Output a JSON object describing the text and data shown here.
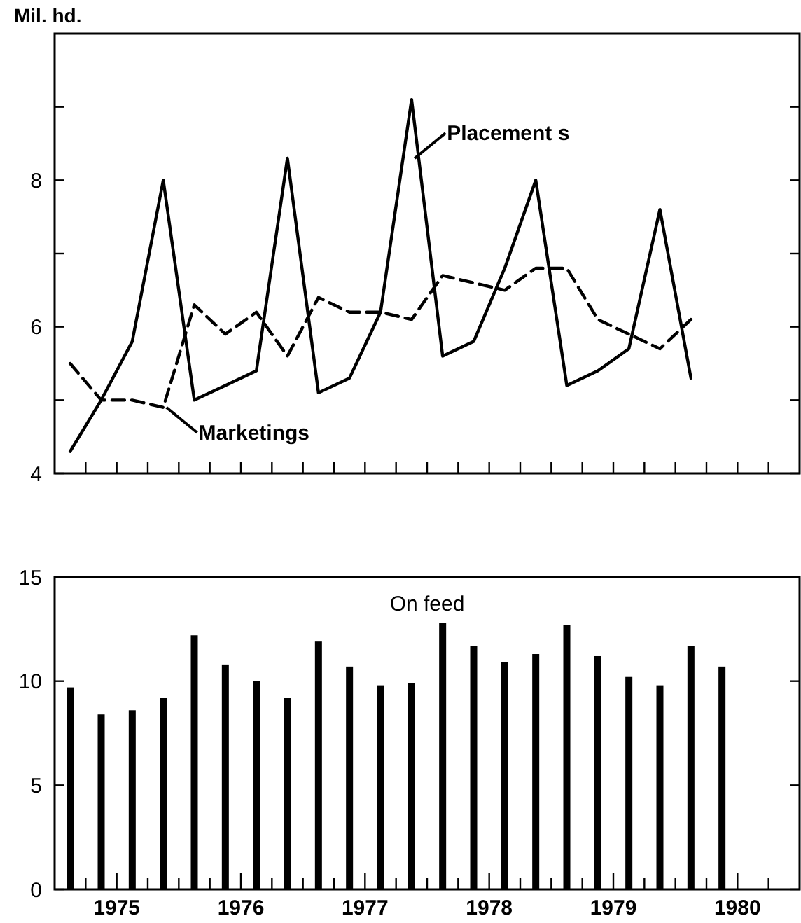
{
  "chart_data": [
    {
      "type": "line",
      "ylabel": "Mil. hd.",
      "xlim": [
        1975,
        1981
      ],
      "xticks": [
        {
          "value": 1975.25,
          "label": null
        },
        {
          "value": 1975.5,
          "label": null
        },
        {
          "value": 1975.75,
          "label": null
        },
        {
          "value": 1976,
          "label": null
        },
        {
          "value": 1976.25,
          "label": null
        },
        {
          "value": 1976.5,
          "label": null
        },
        {
          "value": 1976.75,
          "label": null
        },
        {
          "value": 1977,
          "label": null
        },
        {
          "value": 1977.25,
          "label": null
        },
        {
          "value": 1977.5,
          "label": null
        },
        {
          "value": 1977.75,
          "label": null
        },
        {
          "value": 1978,
          "label": null
        },
        {
          "value": 1978.25,
          "label": null
        },
        {
          "value": 1978.5,
          "label": null
        },
        {
          "value": 1978.75,
          "label": null
        },
        {
          "value": 1979,
          "label": null
        },
        {
          "value": 1979.25,
          "label": null
        },
        {
          "value": 1979.5,
          "label": null
        },
        {
          "value": 1979.75,
          "label": null
        },
        {
          "value": 1980,
          "label": null
        },
        {
          "value": 1980.25,
          "label": null
        },
        {
          "value": 1980.5,
          "label": null
        },
        {
          "value": 1980.75,
          "label": null
        }
      ],
      "ylim": [
        4,
        10
      ],
      "yticks": [
        4,
        {
          "value": 5,
          "label": null
        },
        6,
        {
          "value": 7,
          "label": null
        },
        8,
        {
          "value": 9,
          "label": null
        }
      ],
      "tick_labels": "y",
      "marker": "none",
      "x": [
        1975.125,
        1975.375,
        1975.625,
        1975.875,
        1976.125,
        1976.375,
        1976.625,
        1976.875,
        1977.125,
        1977.375,
        1977.625,
        1977.875,
        1978.125,
        1978.375,
        1978.625,
        1978.875,
        1979.125,
        1979.375,
        1979.625,
        1979.875,
        1980.125
      ],
      "series": [
        {
          "color": "#000000",
          "line_style": "solid",
          "values": [
            4.3,
            5.0,
            5.8,
            8.0,
            5.0,
            5.2,
            5.4,
            8.3,
            5.1,
            5.3,
            6.2,
            9.1,
            5.6,
            5.8,
            6.8,
            8.0,
            5.2,
            5.4,
            5.7,
            7.6,
            5.3
          ]
        },
        {
          "color": "#000000",
          "line_style": "dashed",
          "values": [
            5.5,
            5.0,
            5.0,
            4.9,
            6.3,
            5.9,
            6.2,
            5.6,
            6.4,
            6.2,
            6.2,
            6.1,
            6.7,
            6.6,
            6.5,
            6.8,
            6.8,
            6.1,
            5.9,
            5.7,
            6.1
          ]
        }
      ],
      "annotations": [
        {
          "text": "Placement s",
          "x": 1977.9,
          "y": 8.3
        },
        {
          "text": "Marketings",
          "x": 1975.9,
          "y": 4.9
        }
      ]
    },
    {
      "type": "bar",
      "title": "On feed",
      "color": "#000000",
      "xlim": [
        1975,
        1981
      ],
      "xticks": [
        {
          "value": 1975.25,
          "label": null
        },
        {
          "value": 1975.5,
          "label": "1975"
        },
        {
          "value": 1975.75,
          "label": null
        },
        {
          "value": 1976,
          "label": null
        },
        {
          "value": 1976.25,
          "label": null
        },
        {
          "value": 1976.5,
          "label": "1976"
        },
        {
          "value": 1976.75,
          "label": null
        },
        {
          "value": 1977,
          "label": null
        },
        {
          "value": 1977.25,
          "label": null
        },
        {
          "value": 1977.5,
          "label": "1977"
        },
        {
          "value": 1977.75,
          "label": null
        },
        {
          "value": 1978,
          "label": null
        },
        {
          "value": 1978.25,
          "label": null
        },
        {
          "value": 1978.5,
          "label": "1978"
        },
        {
          "value": 1978.75,
          "label": null
        },
        {
          "value": 1979,
          "label": null
        },
        {
          "value": 1979.25,
          "label": null
        },
        {
          "value": 1979.5,
          "label": "1979"
        },
        {
          "value": 1979.75,
          "label": null
        },
        {
          "value": 1980,
          "label": null
        },
        {
          "value": 1980.25,
          "label": null
        },
        {
          "value": 1980.5,
          "label": "1980"
        },
        {
          "value": 1980.75,
          "label": null
        }
      ],
      "ylim": [
        0,
        15
      ],
      "yticks": [
        0,
        5,
        10,
        15
      ],
      "x": [
        1975.125,
        1975.375,
        1975.625,
        1975.875,
        1976.125,
        1976.375,
        1976.625,
        1976.875,
        1977.125,
        1977.375,
        1977.625,
        1977.875,
        1978.125,
        1978.375,
        1978.625,
        1978.875,
        1979.125,
        1979.375,
        1979.625,
        1979.875,
        1980.125,
        1980.375
      ],
      "values": [
        9.7,
        8.4,
        8.6,
        9.2,
        12.2,
        10.8,
        10.0,
        9.2,
        11.9,
        10.7,
        9.8,
        9.9,
        12.8,
        11.7,
        10.9,
        11.3,
        12.7,
        11.2,
        10.2,
        9.8,
        11.7,
        10.7
      ]
    }
  ]
}
